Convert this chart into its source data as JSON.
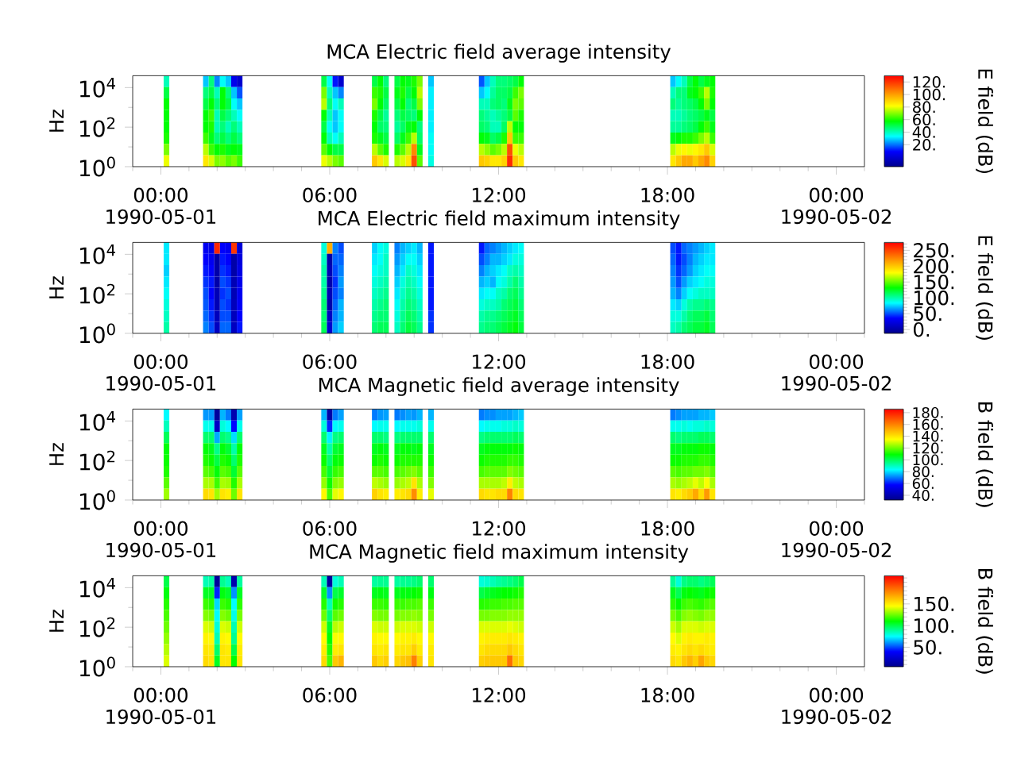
{
  "chart_data": [
    {
      "type": "heatmap",
      "title": "MCA  Electric field average intensity",
      "ylabel": "Hz",
      "clabel": "E field (dB)",
      "x": [
        "1990-05-01T00:12",
        "1990-05-01T00:24",
        "1990-05-01T01:24",
        "1990-05-01T01:36",
        "1990-05-01T01:48",
        "1990-05-01T02:00",
        "1990-05-01T02:12",
        "1990-05-01T02:24",
        "1990-05-01T02:36",
        "1990-05-01T02:48",
        "1990-05-01T03:00",
        "1990-05-01T05:36",
        "1990-05-01T05:48",
        "1990-05-01T06:00",
        "1990-05-01T06:12",
        "1990-05-01T06:24",
        "1990-05-01T06:36",
        "1990-05-01T07:24",
        "1990-05-01T07:36",
        "1990-05-01T07:48",
        "1990-05-01T08:00",
        "1990-05-01T08:12",
        "1990-05-01T08:24",
        "1990-05-01T08:36",
        "1990-05-01T08:48",
        "1990-05-01T09:00",
        "1990-05-01T09:12",
        "1990-05-01T09:24",
        "1990-05-01T09:36",
        "1990-05-01T09:48",
        "1990-05-01T11:12",
        "1990-05-01T11:24",
        "1990-05-01T11:36",
        "1990-05-01T11:48",
        "1990-05-01T12:00",
        "1990-05-01T12:12",
        "1990-05-01T12:24",
        "1990-05-01T12:36",
        "1990-05-01T12:48",
        "1990-05-01T13:00",
        "1990-05-01T18:00",
        "1990-05-01T18:12",
        "1990-05-01T18:24",
        "1990-05-01T18:36",
        "1990-05-01T18:48",
        "1990-05-01T19:00",
        "1990-05-01T19:12",
        "1990-05-01T19:24",
        "1990-05-01T19:36"
      ],
      "cells": [
        [
          40,
          null,
          null,
          28,
          46,
          22,
          34,
          28,
          5,
          -1,
          null,
          null,
          51,
          34,
          11,
          -1,
          null,
          null,
          51,
          57,
          46,
          null,
          51,
          57,
          55,
          60,
          69,
          null,
          28,
          null,
          null,
          17,
          28,
          40,
          46,
          46,
          48,
          51,
          57,
          null,
          null,
          28,
          34,
          40,
          51,
          57,
          51,
          55,
          57
        ],
        [
          51,
          null,
          null,
          46,
          51,
          40,
          57,
          46,
          28,
          17,
          null,
          null,
          69,
          40,
          28,
          22,
          null,
          null,
          63,
          60,
          51,
          null,
          55,
          60,
          51,
          57,
          75,
          null,
          32,
          null,
          null,
          28,
          34,
          43,
          48,
          48,
          51,
          63,
          69,
          null,
          null,
          40,
          46,
          46,
          55,
          57,
          63,
          75,
          60
        ],
        [
          57,
          null,
          null,
          51,
          57,
          46,
          57,
          51,
          34,
          28,
          null,
          null,
          75,
          46,
          34,
          40,
          null,
          null,
          69,
          57,
          48,
          null,
          51,
          57,
          46,
          51,
          69,
          null,
          32,
          null,
          null,
          40,
          40,
          46,
          48,
          46,
          55,
          69,
          66,
          null,
          null,
          46,
          43,
          46,
          48,
          51,
          57,
          69,
          57
        ],
        [
          57,
          null,
          null,
          57,
          63,
          40,
          51,
          46,
          40,
          34,
          null,
          null,
          57,
          40,
          28,
          34,
          null,
          null,
          60,
          51,
          43,
          null,
          46,
          51,
          48,
          46,
          57,
          null,
          32,
          null,
          null,
          46,
          43,
          40,
          43,
          46,
          51,
          66,
          60,
          null,
          null,
          40,
          40,
          43,
          46,
          48,
          51,
          55,
          51
        ],
        [
          57,
          null,
          null,
          57,
          60,
          40,
          46,
          40,
          46,
          40,
          null,
          null,
          51,
          34,
          28,
          34,
          null,
          null,
          57,
          48,
          46,
          null,
          43,
          48,
          55,
          57,
          46,
          null,
          32,
          null,
          null,
          48,
          46,
          40,
          40,
          48,
          75,
          57,
          57,
          null,
          null,
          43,
          43,
          46,
          48,
          51,
          57,
          63,
          55
        ],
        [
          60,
          null,
          null,
          63,
          55,
          46,
          51,
          46,
          51,
          46,
          null,
          null,
          57,
          40,
          34,
          40,
          null,
          null,
          60,
          55,
          51,
          null,
          48,
          55,
          63,
          75,
          48,
          null,
          34,
          null,
          null,
          57,
          55,
          48,
          51,
          60,
          92,
          63,
          63,
          null,
          null,
          55,
          57,
          60,
          60,
          63,
          69,
          75,
          63
        ],
        [
          69,
          null,
          null,
          75,
          63,
          57,
          60,
          55,
          57,
          55,
          null,
          null,
          66,
          57,
          51,
          51,
          null,
          null,
          75,
          66,
          60,
          null,
          60,
          66,
          75,
          104,
          55,
          null,
          34,
          null,
          null,
          75,
          71,
          66,
          69,
          75,
          115,
          80,
          75,
          null,
          null,
          75,
          80,
          83,
          80,
          83,
          86,
          92,
          78
        ],
        [
          80,
          null,
          null,
          86,
          78,
          69,
          71,
          66,
          69,
          63,
          null,
          null,
          80,
          75,
          69,
          66,
          null,
          null,
          92,
          86,
          78,
          null,
          75,
          78,
          86,
          115,
          66,
          null,
          36,
          null,
          null,
          92,
          90,
          86,
          86,
          90,
          122,
          92,
          86,
          null,
          null,
          86,
          92,
          98,
          98,
          92,
          98,
          104,
          90
        ]
      ],
      "clim": [
        -15,
        130
      ],
      "cticks": [
        {
          "value": 20,
          "label": "20."
        },
        {
          "value": 40,
          "label": "40."
        },
        {
          "value": 60,
          "label": "60."
        },
        {
          "value": 80,
          "label": "80."
        },
        {
          "value": 100,
          "label": "100."
        },
        {
          "value": 120,
          "label": "120."
        }
      ],
      "xlim": [
        "1990-04-30T23:00",
        "1990-05-02T01:00"
      ],
      "xticks": [
        {
          "value": "1990-05-01T00:00",
          "label": "00:00 1990-05-01"
        },
        {
          "value": "1990-05-01T06:00",
          "label": "06:00"
        },
        {
          "value": "1990-05-01T12:00",
          "label": "12:00"
        },
        {
          "value": "1990-05-01T18:00",
          "label": "18:00"
        },
        {
          "value": "1990-05-02T00:00",
          "label": "00:00 1990-05-02"
        }
      ],
      "ylim": [
        1,
        40000
      ],
      "yticks": [
        {
          "value": 1,
          "label": "10$^{0}$"
        },
        {
          "value": 100,
          "label": "10$^{2}$"
        },
        {
          "value": 10000,
          "label": "10$^{4}$"
        }
      ],
      "log": "y"
    },
    {
      "type": "heatmap",
      "title": "MCA  Electric field maximum intensity",
      "ylabel": "Hz",
      "clabel": "E field (dB)",
      "x": [
        "1990-05-01T00:12",
        "1990-05-01T00:24",
        "1990-05-01T01:24",
        "1990-05-01T01:36",
        "1990-05-01T01:48",
        "1990-05-01T02:00",
        "1990-05-01T02:12",
        "1990-05-01T02:24",
        "1990-05-01T02:36",
        "1990-05-01T02:48",
        "1990-05-01T03:00",
        "1990-05-01T05:36",
        "1990-05-01T05:48",
        "1990-05-01T06:00",
        "1990-05-01T06:12",
        "1990-05-01T06:24",
        "1990-05-01T06:36",
        "1990-05-01T07:24",
        "1990-05-01T07:36",
        "1990-05-01T07:48",
        "1990-05-01T08:00",
        "1990-05-01T08:12",
        "1990-05-01T08:24",
        "1990-05-01T08:36",
        "1990-05-01T08:48",
        "1990-05-01T09:00",
        "1990-05-01T09:12",
        "1990-05-01T09:24",
        "1990-05-01T09:36",
        "1990-05-01T09:48",
        "1990-05-01T11:12",
        "1990-05-01T11:24",
        "1990-05-01T11:36",
        "1990-05-01T11:48",
        "1990-05-01T12:00",
        "1990-05-01T12:12",
        "1990-05-01T12:24",
        "1990-05-01T12:36",
        "1990-05-01T12:48",
        "1990-05-01T13:00",
        "1990-05-01T18:00",
        "1990-05-01T18:12",
        "1990-05-01T18:24",
        "1990-05-01T18:36",
        "1990-05-01T18:48",
        "1990-05-01T19:00",
        "1990-05-01T19:12",
        "1990-05-01T19:24",
        "1990-05-01T19:36"
      ],
      "cells": [
        [
          80,
          null,
          null,
          30,
          25,
          260,
          35,
          30,
          255,
          20,
          null,
          null,
          90,
          210,
          60,
          50,
          null,
          null,
          75,
          85,
          90,
          null,
          60,
          70,
          75,
          80,
          70,
          null,
          40,
          null,
          null,
          40,
          55,
          60,
          65,
          70,
          75,
          80,
          85,
          null,
          null,
          50,
          40,
          55,
          60,
          65,
          70,
          75,
          80
        ],
        [
          80,
          null,
          null,
          35,
          30,
          0,
          40,
          35,
          0,
          22,
          null,
          null,
          95,
          0,
          55,
          55,
          null,
          null,
          80,
          85,
          95,
          null,
          65,
          75,
          85,
          85,
          75,
          null,
          40,
          null,
          null,
          50,
          60,
          70,
          70,
          75,
          80,
          90,
          90,
          null,
          null,
          55,
          40,
          50,
          60,
          70,
          75,
          80,
          80
        ],
        [
          75,
          null,
          null,
          40,
          35,
          0,
          45,
          40,
          0,
          25,
          null,
          null,
          100,
          5,
          50,
          60,
          null,
          null,
          85,
          90,
          95,
          null,
          70,
          80,
          95,
          90,
          80,
          null,
          40,
          null,
          null,
          60,
          70,
          75,
          80,
          85,
          95,
          100,
          95,
          null,
          null,
          60,
          45,
          55,
          65,
          75,
          80,
          85,
          85
        ],
        [
          80,
          null,
          null,
          45,
          40,
          0,
          50,
          45,
          5,
          28,
          null,
          null,
          100,
          0,
          45,
          65,
          null,
          null,
          90,
          95,
          100,
          null,
          75,
          90,
          100,
          95,
          85,
          null,
          40,
          null,
          null,
          70,
          75,
          70,
          85,
          90,
          100,
          110,
          100,
          null,
          null,
          65,
          50,
          65,
          75,
          80,
          85,
          90,
          90
        ],
        [
          85,
          null,
          null,
          50,
          35,
          5,
          45,
          50,
          5,
          30,
          null,
          null,
          105,
          5,
          50,
          60,
          null,
          null,
          95,
          100,
          105,
          null,
          80,
          95,
          105,
          100,
          90,
          null,
          40,
          null,
          null,
          80,
          85,
          85,
          95,
          100,
          110,
          115,
          105,
          null,
          null,
          70,
          60,
          75,
          85,
          90,
          95,
          95,
          95
        ],
        [
          90,
          null,
          null,
          52,
          40,
          5,
          50,
          45,
          8,
          32,
          null,
          null,
          110,
          0,
          55,
          70,
          null,
          null,
          100,
          105,
          110,
          null,
          85,
          100,
          110,
          105,
          95,
          null,
          40,
          null,
          null,
          90,
          95,
          95,
          100,
          110,
          115,
          120,
          110,
          null,
          null,
          80,
          75,
          90,
          100,
          105,
          105,
          110,
          105
        ],
        [
          95,
          null,
          null,
          55,
          45,
          8,
          50,
          50,
          8,
          35,
          null,
          null,
          110,
          10,
          60,
          70,
          null,
          null,
          105,
          110,
          110,
          null,
          90,
          105,
          115,
          110,
          100,
          null,
          45,
          null,
          null,
          100,
          105,
          105,
          110,
          115,
          120,
          125,
          115,
          null,
          null,
          90,
          90,
          100,
          110,
          115,
          115,
          120,
          110
        ],
        [
          100,
          null,
          null,
          60,
          50,
          10,
          55,
          55,
          10,
          40,
          null,
          null,
          115,
          15,
          65,
          75,
          null,
          null,
          110,
          115,
          115,
          null,
          95,
          110,
          120,
          115,
          105,
          null,
          45,
          null,
          null,
          105,
          110,
          110,
          115,
          120,
          125,
          130,
          120,
          null,
          null,
          95,
          100,
          110,
          115,
          120,
          120,
          125,
          115
        ]
      ],
      "clim": [
        -12,
        275
      ],
      "cticks": [
        {
          "value": -10,
          "label": null
        },
        {
          "value": 0,
          "label": "0."
        },
        {
          "value": 10,
          "label": null
        },
        {
          "value": 20,
          "label": null
        },
        {
          "value": 30,
          "label": null
        },
        {
          "value": 40,
          "label": null
        },
        {
          "value": 50,
          "label": "50."
        },
        {
          "value": 60,
          "label": null
        },
        {
          "value": 70,
          "label": null
        },
        {
          "value": 80,
          "label": null
        },
        {
          "value": 90,
          "label": null
        },
        {
          "value": 100,
          "label": "100."
        },
        {
          "value": 110,
          "label": null
        },
        {
          "value": 120,
          "label": null
        },
        {
          "value": 130,
          "label": null
        },
        {
          "value": 140,
          "label": null
        },
        {
          "value": 150,
          "label": "150."
        },
        {
          "value": 160,
          "label": null
        },
        {
          "value": 170,
          "label": null
        },
        {
          "value": 180,
          "label": null
        },
        {
          "value": 190,
          "label": null
        },
        {
          "value": 200,
          "label": "200."
        },
        {
          "value": 210,
          "label": null
        },
        {
          "value": 220,
          "label": null
        },
        {
          "value": 230,
          "label": null
        },
        {
          "value": 240,
          "label": null
        },
        {
          "value": 250,
          "label": "250."
        },
        {
          "value": 260,
          "label": null
        },
        {
          "value": 270,
          "label": null
        }
      ],
      "xlim": [
        "1990-04-30T23:00",
        "1990-05-02T01:00"
      ],
      "xticks": [
        {
          "value": "1990-05-01T00:00",
          "label": "00:00 1990-05-01"
        },
        {
          "value": "1990-05-01T06:00",
          "label": "06:00"
        },
        {
          "value": "1990-05-01T12:00",
          "label": "12:00"
        },
        {
          "value": "1990-05-01T18:00",
          "label": "18:00"
        },
        {
          "value": "1990-05-02T00:00",
          "label": "00:00 1990-05-02"
        }
      ],
      "ylim": [
        1,
        40000
      ],
      "yticks": [
        {
          "value": 1,
          "label": "10$^{0}$"
        },
        {
          "value": 100,
          "label": "10$^{2}$"
        },
        {
          "value": 10000,
          "label": "10$^{4}$"
        }
      ],
      "log": "y"
    },
    {
      "type": "heatmap",
      "title": "MCA  Magnetic field average intensity",
      "ylabel": "Hz",
      "clabel": "B field (dB)",
      "x": [
        "1990-05-01T00:12",
        "1990-05-01T00:24",
        "1990-05-01T01:24",
        "1990-05-01T01:36",
        "1990-05-01T01:48",
        "1990-05-01T02:00",
        "1990-05-01T02:12",
        "1990-05-01T02:24",
        "1990-05-01T02:36",
        "1990-05-01T02:48",
        "1990-05-01T03:00",
        "1990-05-01T05:36",
        "1990-05-01T05:48",
        "1990-05-01T06:00",
        "1990-05-01T06:12",
        "1990-05-01T06:24",
        "1990-05-01T06:36",
        "1990-05-01T07:24",
        "1990-05-01T07:36",
        "1990-05-01T07:48",
        "1990-05-01T08:00",
        "1990-05-01T08:12",
        "1990-05-01T08:24",
        "1990-05-01T08:36",
        "1990-05-01T08:48",
        "1990-05-01T09:00",
        "1990-05-01T09:12",
        "1990-05-01T09:24",
        "1990-05-01T09:36",
        "1990-05-01T09:48",
        "1990-05-01T11:12",
        "1990-05-01T11:24",
        "1990-05-01T11:36",
        "1990-05-01T11:48",
        "1990-05-01T12:00",
        "1990-05-01T12:12",
        "1990-05-01T12:24",
        "1990-05-01T12:36",
        "1990-05-01T12:48",
        "1990-05-01T13:00",
        "1990-05-01T18:00",
        "1990-05-01T18:12",
        "1990-05-01T18:24",
        "1990-05-01T18:36",
        "1990-05-01T18:48",
        "1990-05-01T19:00",
        "1990-05-01T19:12",
        "1990-05-01T19:24",
        "1990-05-01T19:36"
      ],
      "cells": [
        [
          83,
          null,
          null,
          73,
          73,
          36,
          76,
          70,
          40,
          74,
          null,
          null,
          76,
          38,
          70,
          74,
          null,
          null,
          70,
          73,
          74,
          null,
          70,
          72,
          74,
          73,
          76,
          null,
          76,
          null,
          null,
          70,
          72,
          72,
          74,
          74,
          74,
          76,
          78,
          null,
          null,
          70,
          72,
          74,
          74,
          74,
          76,
          76,
          78
        ],
        [
          90,
          null,
          null,
          85,
          85,
          45,
          87,
          83,
          58,
          85,
          null,
          null,
          87,
          62,
          83,
          85,
          null,
          null,
          83,
          85,
          85,
          null,
          83,
          85,
          85,
          85,
          87,
          null,
          85,
          null,
          null,
          83,
          85,
          85,
          85,
          87,
          87,
          89,
          87,
          null,
          null,
          85,
          85,
          87,
          85,
          87,
          87,
          89,
          87
        ],
        [
          100,
          null,
          null,
          98,
          98,
          75,
          98,
          95,
          80,
          98,
          null,
          null,
          98,
          82,
          96,
          98,
          null,
          null,
          98,
          98,
          96,
          null,
          96,
          98,
          98,
          98,
          98,
          null,
          98,
          null,
          null,
          96,
          98,
          98,
          98,
          98,
          98,
          100,
          98,
          null,
          null,
          98,
          96,
          98,
          98,
          98,
          100,
          100,
          98
        ],
        [
          108,
          null,
          null,
          108,
          106,
          95,
          108,
          104,
          92,
          108,
          null,
          null,
          106,
          92,
          104,
          106,
          null,
          null,
          106,
          108,
          106,
          null,
          106,
          108,
          108,
          106,
          108,
          null,
          106,
          null,
          null,
          106,
          108,
          108,
          108,
          108,
          108,
          110,
          108,
          null,
          null,
          106,
          106,
          108,
          108,
          108,
          110,
          110,
          108
        ],
        [
          110,
          null,
          null,
          112,
          110,
          102,
          112,
          110,
          98,
          112,
          null,
          null,
          110,
          98,
          108,
          110,
          null,
          null,
          110,
          112,
          110,
          null,
          110,
          112,
          112,
          112,
          112,
          null,
          110,
          null,
          null,
          110,
          112,
          112,
          112,
          112,
          114,
          114,
          112,
          null,
          null,
          110,
          110,
          112,
          112,
          112,
          114,
          114,
          112
        ],
        [
          112,
          null,
          null,
          118,
          116,
          108,
          118,
          116,
          104,
          118,
          null,
          null,
          116,
          104,
          114,
          116,
          null,
          null,
          118,
          118,
          116,
          null,
          116,
          118,
          120,
          122,
          118,
          null,
          115,
          null,
          null,
          116,
          118,
          118,
          118,
          118,
          122,
          120,
          118,
          null,
          null,
          118,
          116,
          118,
          118,
          120,
          120,
          122,
          118
        ],
        [
          118,
          null,
          null,
          126,
          126,
          115,
          126,
          125,
          112,
          126,
          null,
          null,
          124,
          110,
          122,
          124,
          null,
          null,
          128,
          126,
          124,
          null,
          124,
          126,
          128,
          140,
          126,
          null,
          122,
          null,
          null,
          126,
          126,
          126,
          126,
          128,
          138,
          128,
          126,
          null,
          null,
          126,
          124,
          126,
          128,
          132,
          128,
          134,
          126
        ],
        [
          125,
          null,
          null,
          142,
          140,
          125,
          140,
          138,
          120,
          140,
          null,
          null,
          136,
          116,
          132,
          136,
          null,
          null,
          144,
          140,
          138,
          null,
          138,
          140,
          142,
          158,
          138,
          null,
          132,
          null,
          null,
          142,
          140,
          140,
          142,
          142,
          160,
          142,
          140,
          null,
          null,
          140,
          138,
          142,
          145,
          152,
          142,
          155,
          140
        ]
      ],
      "clim": [
        32,
        186
      ],
      "cticks": [
        {
          "value": 40,
          "label": "40."
        },
        {
          "value": 60,
          "label": "60."
        },
        {
          "value": 80,
          "label": "80."
        },
        {
          "value": 100,
          "label": "100."
        },
        {
          "value": 120,
          "label": "120."
        },
        {
          "value": 140,
          "label": "140."
        },
        {
          "value": 160,
          "label": "160."
        },
        {
          "value": 180,
          "label": "180."
        }
      ],
      "xlim": [
        "1990-04-30T23:00",
        "1990-05-02T01:00"
      ],
      "xticks": [
        {
          "value": "1990-05-01T00:00",
          "label": "00:00 1990-05-01"
        },
        {
          "value": "1990-05-01T06:00",
          "label": "06:00"
        },
        {
          "value": "1990-05-01T12:00",
          "label": "12:00"
        },
        {
          "value": "1990-05-01T18:00",
          "label": "18:00"
        },
        {
          "value": "1990-05-02T00:00",
          "label": "00:00 1990-05-02"
        }
      ],
      "ylim": [
        1,
        40000
      ],
      "yticks": [
        {
          "value": 1,
          "label": "10$^{0}$"
        },
        {
          "value": 100,
          "label": "10$^{2}$"
        },
        {
          "value": 10000,
          "label": "10$^{4}$"
        }
      ],
      "log": "y"
    },
    {
      "type": "heatmap",
      "title": "MCA  Magnetic field maximum intensity",
      "ylabel": "Hz",
      "clabel": "B field (dB)",
      "x": [
        "1990-05-01T00:12",
        "1990-05-01T00:24",
        "1990-05-01T01:24",
        "1990-05-01T01:36",
        "1990-05-01T01:48",
        "1990-05-01T02:00",
        "1990-05-01T02:12",
        "1990-05-01T02:24",
        "1990-05-01T02:36",
        "1990-05-01T02:48",
        "1990-05-01T03:00",
        "1990-05-01T05:36",
        "1990-05-01T05:48",
        "1990-05-01T06:00",
        "1990-05-01T06:12",
        "1990-05-01T06:24",
        "1990-05-01T06:36",
        "1990-05-01T07:24",
        "1990-05-01T07:36",
        "1990-05-01T07:48",
        "1990-05-01T08:00",
        "1990-05-01T08:12",
        "1990-05-01T08:24",
        "1990-05-01T08:36",
        "1990-05-01T08:48",
        "1990-05-01T09:00",
        "1990-05-01T09:12",
        "1990-05-01T09:24",
        "1990-05-01T09:36",
        "1990-05-01T09:48",
        "1990-05-01T11:12",
        "1990-05-01T11:24",
        "1990-05-01T11:36",
        "1990-05-01T11:48",
        "1990-05-01T12:00",
        "1990-05-01T12:12",
        "1990-05-01T12:24",
        "1990-05-01T12:36",
        "1990-05-01T12:48",
        "1990-05-01T13:00",
        "1990-05-01T18:00",
        "1990-05-01T18:12",
        "1990-05-01T18:24",
        "1990-05-01T18:36",
        "1990-05-01T18:48",
        "1990-05-01T19:00",
        "1990-05-01T19:12",
        "1990-05-01T19:24",
        "1990-05-01T19:36"
      ],
      "cells": [
        [
          100,
          null,
          null,
          85,
          88,
          10,
          90,
          85,
          15,
          88,
          null,
          null,
          85,
          10,
          80,
          85,
          null,
          null,
          88,
          90,
          90,
          null,
          88,
          90,
          90,
          92,
          95,
          null,
          95,
          null,
          null,
          80,
          82,
          85,
          88,
          90,
          92,
          95,
          100,
          null,
          null,
          90,
          80,
          92,
          95,
          95,
          92,
          95,
          98
        ],
        [
          108,
          null,
          null,
          105,
          105,
          45,
          108,
          104,
          60,
          105,
          null,
          null,
          104,
          60,
          100,
          104,
          null,
          null,
          106,
          108,
          106,
          null,
          106,
          108,
          108,
          110,
          112,
          null,
          108,
          null,
          null,
          100,
          104,
          106,
          108,
          110,
          110,
          112,
          115,
          null,
          null,
          106,
          98,
          108,
          110,
          108,
          106,
          110,
          112
        ],
        [
          115,
          null,
          null,
          118,
          115,
          70,
          118,
          115,
          75,
          116,
          null,
          null,
          115,
          85,
          112,
          115,
          null,
          null,
          118,
          118,
          116,
          null,
          118,
          118,
          120,
          120,
          122,
          null,
          118,
          null,
          null,
          115,
          116,
          118,
          118,
          120,
          120,
          122,
          122,
          null,
          null,
          116,
          110,
          118,
          120,
          118,
          116,
          120,
          122
        ],
        [
          120,
          null,
          null,
          128,
          126,
          75,
          128,
          125,
          78,
          126,
          null,
          null,
          125,
          95,
          122,
          125,
          null,
          null,
          128,
          126,
          126,
          null,
          126,
          128,
          128,
          130,
          128,
          null,
          126,
          null,
          null,
          126,
          126,
          128,
          128,
          128,
          130,
          130,
          130,
          null,
          null,
          126,
          120,
          128,
          130,
          128,
          126,
          130,
          130
        ],
        [
          125,
          null,
          null,
          140,
          138,
          80,
          140,
          138,
          85,
          138,
          null,
          null,
          138,
          105,
          135,
          138,
          null,
          null,
          140,
          138,
          138,
          null,
          138,
          140,
          140,
          140,
          138,
          null,
          138,
          null,
          null,
          140,
          140,
          140,
          140,
          140,
          142,
          140,
          138,
          null,
          null,
          138,
          132,
          140,
          140,
          140,
          138,
          140,
          140
        ],
        [
          130,
          null,
          null,
          148,
          146,
          85,
          148,
          146,
          90,
          146,
          null,
          null,
          146,
          110,
          144,
          146,
          null,
          null,
          148,
          146,
          146,
          null,
          146,
          148,
          148,
          150,
          146,
          null,
          146,
          null,
          null,
          148,
          150,
          150,
          150,
          150,
          152,
          150,
          148,
          null,
          null,
          146,
          140,
          148,
          150,
          148,
          148,
          150,
          148
        ],
        [
          135,
          null,
          null,
          152,
          150,
          95,
          152,
          150,
          100,
          150,
          null,
          null,
          150,
          115,
          150,
          152,
          null,
          null,
          152,
          150,
          152,
          null,
          150,
          152,
          152,
          158,
          150,
          null,
          150,
          null,
          null,
          152,
          155,
          155,
          155,
          155,
          160,
          155,
          152,
          null,
          null,
          150,
          148,
          152,
          155,
          152,
          155,
          152,
          150
        ],
        [
          140,
          null,
          null,
          155,
          152,
          105,
          152,
          152,
          110,
          152,
          null,
          null,
          155,
          120,
          160,
          165,
          null,
          null,
          160,
          155,
          158,
          null,
          156,
          160,
          162,
          180,
          158,
          null,
          152,
          null,
          null,
          158,
          160,
          160,
          160,
          160,
          185,
          160,
          156,
          null,
          null,
          155,
          152,
          160,
          165,
          158,
          170,
          160,
          156
        ]
      ],
      "clim": [
        5,
        215
      ],
      "cticks": [
        {
          "value": 10,
          "label": null
        },
        {
          "value": 20,
          "label": null
        },
        {
          "value": 30,
          "label": null
        },
        {
          "value": 40,
          "label": null
        },
        {
          "value": 50,
          "label": "50."
        },
        {
          "value": 60,
          "label": null
        },
        {
          "value": 70,
          "label": null
        },
        {
          "value": 80,
          "label": null
        },
        {
          "value": 90,
          "label": null
        },
        {
          "value": 100,
          "label": "100."
        },
        {
          "value": 110,
          "label": null
        },
        {
          "value": 120,
          "label": null
        },
        {
          "value": 130,
          "label": null
        },
        {
          "value": 140,
          "label": null
        },
        {
          "value": 150,
          "label": "150."
        },
        {
          "value": 160,
          "label": null
        },
        {
          "value": 170,
          "label": null
        },
        {
          "value": 180,
          "label": null
        },
        {
          "value": 190,
          "label": null
        },
        {
          "value": 200,
          "label": null
        },
        {
          "value": 210,
          "label": null
        }
      ],
      "xlim": [
        "1990-04-30T23:00",
        "1990-05-02T01:00"
      ],
      "xticks": [
        {
          "value": "1990-05-01T00:00",
          "label": "00:00 1990-05-01"
        },
        {
          "value": "1990-05-01T06:00",
          "label": "06:00"
        },
        {
          "value": "1990-05-01T12:00",
          "label": "12:00"
        },
        {
          "value": "1990-05-01T18:00",
          "label": "18:00"
        },
        {
          "value": "1990-05-02T00:00",
          "label": "00:00 1990-05-02"
        }
      ],
      "ylim": [
        1,
        40000
      ],
      "yticks": [
        {
          "value": 1,
          "label": "10$^{0}$"
        },
        {
          "value": 100,
          "label": "10$^{2}$"
        },
        {
          "value": 10000,
          "label": "10$^{4}$"
        }
      ],
      "log": "y"
    }
  ]
}
